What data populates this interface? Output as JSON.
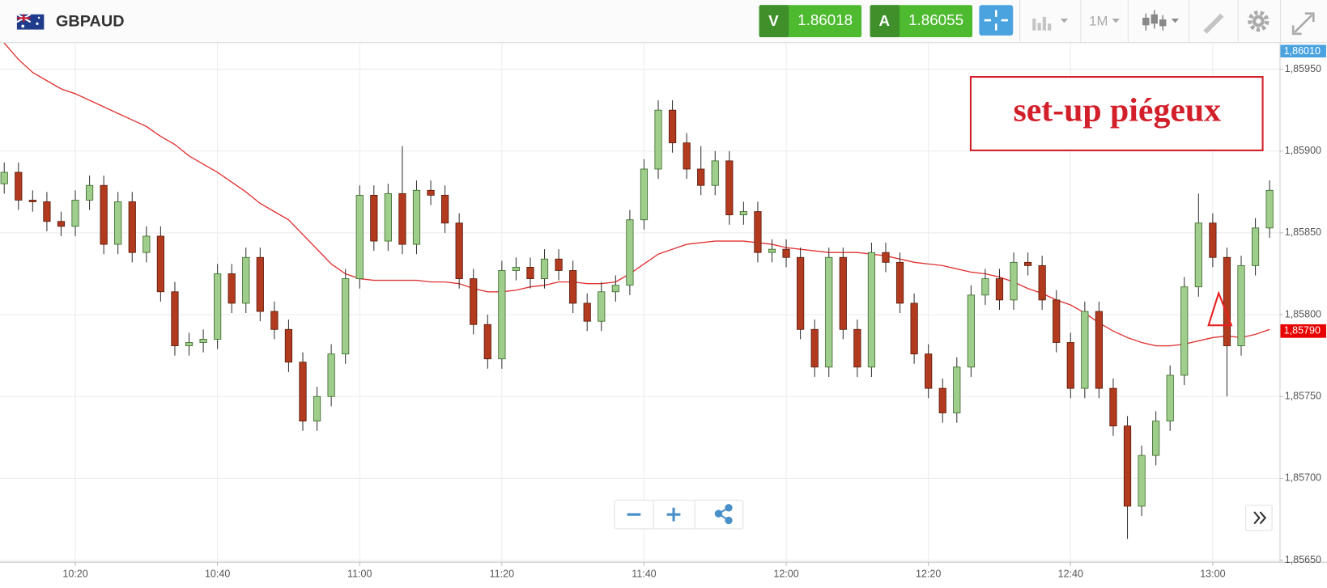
{
  "header": {
    "symbol": "GBPAUD",
    "sell_label": "V",
    "sell_price": "1.86018",
    "buy_label": "A",
    "buy_price": "1.86055",
    "timeframe": "1M"
  },
  "chart_data": {
    "type": "candlestick",
    "annotation": "set-up piégeux",
    "up_color": "#9fcd8b",
    "down_color": "#b23a1e",
    "grid": true,
    "x": [
      "10:10",
      "10:12",
      "10:14",
      "10:16",
      "10:18",
      "10:20",
      "10:22",
      "10:24",
      "10:26",
      "10:28",
      "10:30",
      "10:32",
      "10:34",
      "10:36",
      "10:38",
      "10:40",
      "10:42",
      "10:44",
      "10:46",
      "10:48",
      "10:50",
      "10:52",
      "10:54",
      "10:56",
      "10:58",
      "11:00",
      "11:02",
      "11:04",
      "11:06",
      "11:08",
      "11:10",
      "11:12",
      "11:14",
      "11:16",
      "11:18",
      "11:20",
      "11:22",
      "11:24",
      "11:26",
      "11:28",
      "11:30",
      "11:32",
      "11:34",
      "11:36",
      "11:38",
      "11:40",
      "11:42",
      "11:44",
      "11:46",
      "11:48",
      "11:50",
      "11:52",
      "11:54",
      "11:56",
      "11:58",
      "12:00",
      "12:02",
      "12:04",
      "12:06",
      "12:08",
      "12:10",
      "12:12",
      "12:14",
      "12:16",
      "12:18",
      "12:20",
      "12:22",
      "12:24",
      "12:26",
      "12:28",
      "12:30",
      "12:32",
      "12:34",
      "12:36",
      "12:38",
      "12:40",
      "12:42",
      "12:44",
      "12:46",
      "12:48",
      "12:50",
      "12:52",
      "12:54",
      "12:56",
      "12:58",
      "13:00",
      "13:02",
      "13:04",
      "13:06",
      "13:08"
    ],
    "open": [
      1.8588,
      1.85887,
      1.8587,
      1.85869,
      1.85857,
      1.85854,
      1.8587,
      1.85879,
      1.85843,
      1.85869,
      1.85838,
      1.85848,
      1.85814,
      1.85781,
      1.85783,
      1.85785,
      1.85825,
      1.85807,
      1.85835,
      1.85802,
      1.85791,
      1.85771,
      1.85735,
      1.8575,
      1.85776,
      1.85822,
      1.85873,
      1.85845,
      1.85874,
      1.85843,
      1.85876,
      1.85873,
      1.85856,
      1.85822,
      1.85794,
      1.85773,
      1.85827,
      1.85829,
      1.85822,
      1.85834,
      1.85827,
      1.85807,
      1.85796,
      1.85814,
      1.85818,
      1.85858,
      1.85889,
      1.85925,
      1.85905,
      1.85889,
      1.85879,
      1.85894,
      1.85861,
      1.85863,
      1.85838,
      1.8584,
      1.85835,
      1.85791,
      1.85768,
      1.85835,
      1.85791,
      1.85768,
      1.85838,
      1.85832,
      1.85807,
      1.85776,
      1.85755,
      1.8574,
      1.85768,
      1.85812,
      1.85822,
      1.85809,
      1.85832,
      1.8583,
      1.85809,
      1.85783,
      1.85755,
      1.85802,
      1.85755,
      1.85732,
      1.85683,
      1.85714,
      1.85735,
      1.85763,
      1.85817,
      1.85856,
      1.85835,
      1.85781,
      1.8583,
      1.85853
    ],
    "high": [
      1.85893,
      1.85893,
      1.85876,
      1.85875,
      1.85863,
      1.85876,
      1.85885,
      1.85885,
      1.85875,
      1.85875,
      1.85854,
      1.85854,
      1.8582,
      1.85789,
      1.85791,
      1.85831,
      1.85831,
      1.85841,
      1.85841,
      1.85808,
      1.85797,
      1.85777,
      1.85756,
      1.85782,
      1.85828,
      1.85879,
      1.85879,
      1.8588,
      1.85903,
      1.85882,
      1.85882,
      1.85879,
      1.85862,
      1.85828,
      1.858,
      1.85833,
      1.85835,
      1.85835,
      1.8584,
      1.8584,
      1.85833,
      1.85813,
      1.8582,
      1.85824,
      1.85864,
      1.85895,
      1.85931,
      1.85931,
      1.85911,
      1.85903,
      1.859,
      1.859,
      1.85869,
      1.85869,
      1.85846,
      1.85846,
      1.85841,
      1.85797,
      1.85841,
      1.85841,
      1.85797,
      1.85844,
      1.85844,
      1.85838,
      1.85813,
      1.85782,
      1.85761,
      1.85774,
      1.85818,
      1.85828,
      1.85828,
      1.85838,
      1.85838,
      1.85836,
      1.85815,
      1.85789,
      1.85808,
      1.85808,
      1.85761,
      1.85738,
      1.8572,
      1.85741,
      1.85769,
      1.85823,
      1.85874,
      1.85862,
      1.85841,
      1.85836,
      1.85859,
      1.85882
    ],
    "low": [
      1.85874,
      1.85864,
      1.85863,
      1.85851,
      1.85848,
      1.85848,
      1.85864,
      1.85837,
      1.85837,
      1.85832,
      1.85832,
      1.85808,
      1.85775,
      1.85775,
      1.85777,
      1.85779,
      1.85801,
      1.85801,
      1.85796,
      1.85785,
      1.85765,
      1.85729,
      1.85729,
      1.85744,
      1.8577,
      1.85816,
      1.85839,
      1.85839,
      1.85837,
      1.85837,
      1.85867,
      1.8585,
      1.85816,
      1.85788,
      1.85767,
      1.85767,
      1.85821,
      1.85816,
      1.85816,
      1.85821,
      1.85801,
      1.8579,
      1.8579,
      1.85808,
      1.85812,
      1.85852,
      1.85883,
      1.85899,
      1.85883,
      1.85873,
      1.85873,
      1.85855,
      1.85855,
      1.85832,
      1.85832,
      1.85829,
      1.85785,
      1.85762,
      1.85762,
      1.85785,
      1.85762,
      1.85762,
      1.85826,
      1.85801,
      1.8577,
      1.85749,
      1.85734,
      1.85734,
      1.85762,
      1.85806,
      1.85803,
      1.85803,
      1.85824,
      1.85803,
      1.85777,
      1.85749,
      1.85749,
      1.85749,
      1.85726,
      1.85663,
      1.85677,
      1.85708,
      1.85729,
      1.85757,
      1.85811,
      1.85829,
      1.8575,
      1.85775,
      1.85824,
      1.85847
    ],
    "close": [
      1.85887,
      1.8587,
      1.85869,
      1.85857,
      1.85854,
      1.8587,
      1.85879,
      1.85843,
      1.85869,
      1.85838,
      1.85848,
      1.85814,
      1.85781,
      1.85783,
      1.85785,
      1.85825,
      1.85807,
      1.85835,
      1.85802,
      1.85791,
      1.85771,
      1.85735,
      1.8575,
      1.85776,
      1.85822,
      1.85873,
      1.85845,
      1.85874,
      1.85843,
      1.85876,
      1.85873,
      1.85856,
      1.85822,
      1.85794,
      1.85773,
      1.85827,
      1.85829,
      1.85822,
      1.85834,
      1.85827,
      1.85807,
      1.85796,
      1.85814,
      1.85818,
      1.85858,
      1.85889,
      1.85925,
      1.85905,
      1.85889,
      1.85879,
      1.85894,
      1.85861,
      1.85863,
      1.85838,
      1.8584,
      1.85835,
      1.85791,
      1.85768,
      1.85835,
      1.85791,
      1.85768,
      1.85838,
      1.85832,
      1.85807,
      1.85776,
      1.85755,
      1.8574,
      1.85768,
      1.85812,
      1.85822,
      1.85809,
      1.85832,
      1.8583,
      1.85809,
      1.85783,
      1.85755,
      1.85802,
      1.85755,
      1.85732,
      1.85683,
      1.85714,
      1.85735,
      1.85763,
      1.85817,
      1.85856,
      1.85835,
      1.85781,
      1.8583,
      1.85853,
      1.85876
    ],
    "moving_average": {
      "color": "#e03232",
      "values": [
        1.85966,
        1.85956,
        1.85948,
        1.85943,
        1.85938,
        1.85935,
        1.85931,
        1.85927,
        1.85923,
        1.85919,
        1.85915,
        1.85909,
        1.85904,
        1.85897,
        1.85892,
        1.85887,
        1.85881,
        1.85875,
        1.85868,
        1.85863,
        1.85858,
        1.85849,
        1.8584,
        1.85831,
        1.85825,
        1.85822,
        1.85821,
        1.85821,
        1.85821,
        1.85821,
        1.8582,
        1.8582,
        1.85819,
        1.85816,
        1.85814,
        1.85814,
        1.85815,
        1.85817,
        1.85818,
        1.8582,
        1.8582,
        1.85819,
        1.85819,
        1.8582,
        1.85825,
        1.85831,
        1.85837,
        1.8584,
        1.85843,
        1.85844,
        1.85845,
        1.85845,
        1.85845,
        1.85844,
        1.85843,
        1.85841,
        1.8584,
        1.85839,
        1.85838,
        1.85838,
        1.85838,
        1.85837,
        1.85836,
        1.85834,
        1.85832,
        1.85831,
        1.8583,
        1.85828,
        1.85826,
        1.85825,
        1.85823,
        1.8582,
        1.85816,
        1.85813,
        1.85809,
        1.85806,
        1.85801,
        1.85795,
        1.8579,
        1.85786,
        1.85783,
        1.85781,
        1.85781,
        1.85782,
        1.85784,
        1.85786,
        1.85787,
        1.85786,
        1.85788,
        1.85791
      ]
    },
    "ylim": [
      1.85649,
      1.85967
    ],
    "yticks": [
      {
        "value": 1.8595,
        "label": "1,85950"
      },
      {
        "value": 1.859,
        "label": "1,85900"
      },
      {
        "value": 1.8585,
        "label": "1,85850"
      },
      {
        "value": 1.858,
        "label": "1,85800"
      },
      {
        "value": 1.8575,
        "label": "1,85750"
      },
      {
        "value": 1.857,
        "label": "1,85700"
      },
      {
        "value": 1.8565,
        "label": "1,85650"
      }
    ],
    "xticks": [
      "10:20",
      "10:40",
      "11:00",
      "11:20",
      "11:40",
      "12:00",
      "12:20",
      "12:40",
      "13:00"
    ],
    "top_price_badge": {
      "value": 1.8601,
      "label": "1,86010",
      "color": "#4aa3df"
    },
    "ma_price_badge": {
      "value": 1.8579,
      "label": "1,85790",
      "color": "#e80000"
    }
  }
}
